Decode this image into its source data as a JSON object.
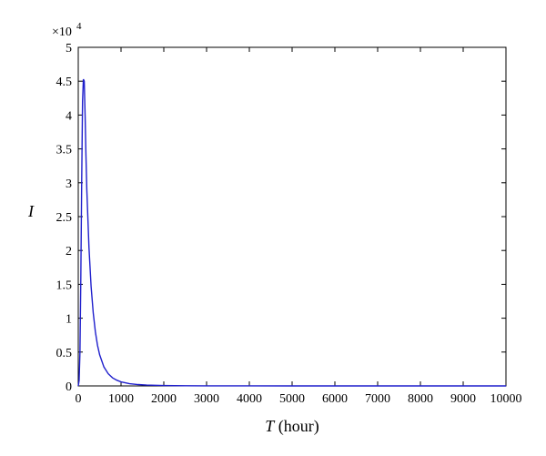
{
  "chart_data": {
    "type": "line",
    "title": "",
    "xlabel_var": "T",
    "xlabel_unit": " (hour)",
    "ylabel": "I",
    "y_exponent_base": "×10",
    "y_exponent_power": "4",
    "xlim": [
      0,
      10000
    ],
    "ylim": [
      0,
      50000
    ],
    "xticks": [
      0,
      1000,
      2000,
      3000,
      4000,
      5000,
      6000,
      7000,
      8000,
      9000,
      10000
    ],
    "xtick_labels": [
      "0",
      "1000",
      "2000",
      "3000",
      "4000",
      "5000",
      "6000",
      "7000",
      "8000",
      "9000",
      "10000"
    ],
    "yticks": [
      0,
      5000,
      10000,
      15000,
      20000,
      25000,
      30000,
      35000,
      40000,
      45000,
      50000
    ],
    "ytick_labels": [
      "0",
      "0.5",
      "1",
      "1.5",
      "2",
      "2.5",
      "3",
      "3.5",
      "4",
      "4.5",
      "5"
    ],
    "grid": false,
    "series": [
      {
        "color": "#1f1fcc",
        "x": [
          0,
          20,
          40,
          60,
          80,
          100,
          120,
          140,
          160,
          180,
          200,
          250,
          300,
          350,
          400,
          450,
          500,
          600,
          700,
          800,
          900,
          1000,
          1200,
          1400,
          1600,
          1800,
          2000,
          2500,
          3000,
          4000,
          5000,
          6000,
          7000,
          8000,
          9000,
          10000
        ],
        "y": [
          0,
          800,
          5000,
          16000,
          30000,
          42000,
          45300,
          45000,
          40000,
          34000,
          29000,
          20500,
          14700,
          10800,
          8000,
          6000,
          4600,
          2800,
          1800,
          1200,
          850,
          600,
          330,
          200,
          130,
          90,
          60,
          25,
          12,
          4,
          2,
          1,
          0,
          0,
          0,
          0
        ]
      }
    ]
  }
}
